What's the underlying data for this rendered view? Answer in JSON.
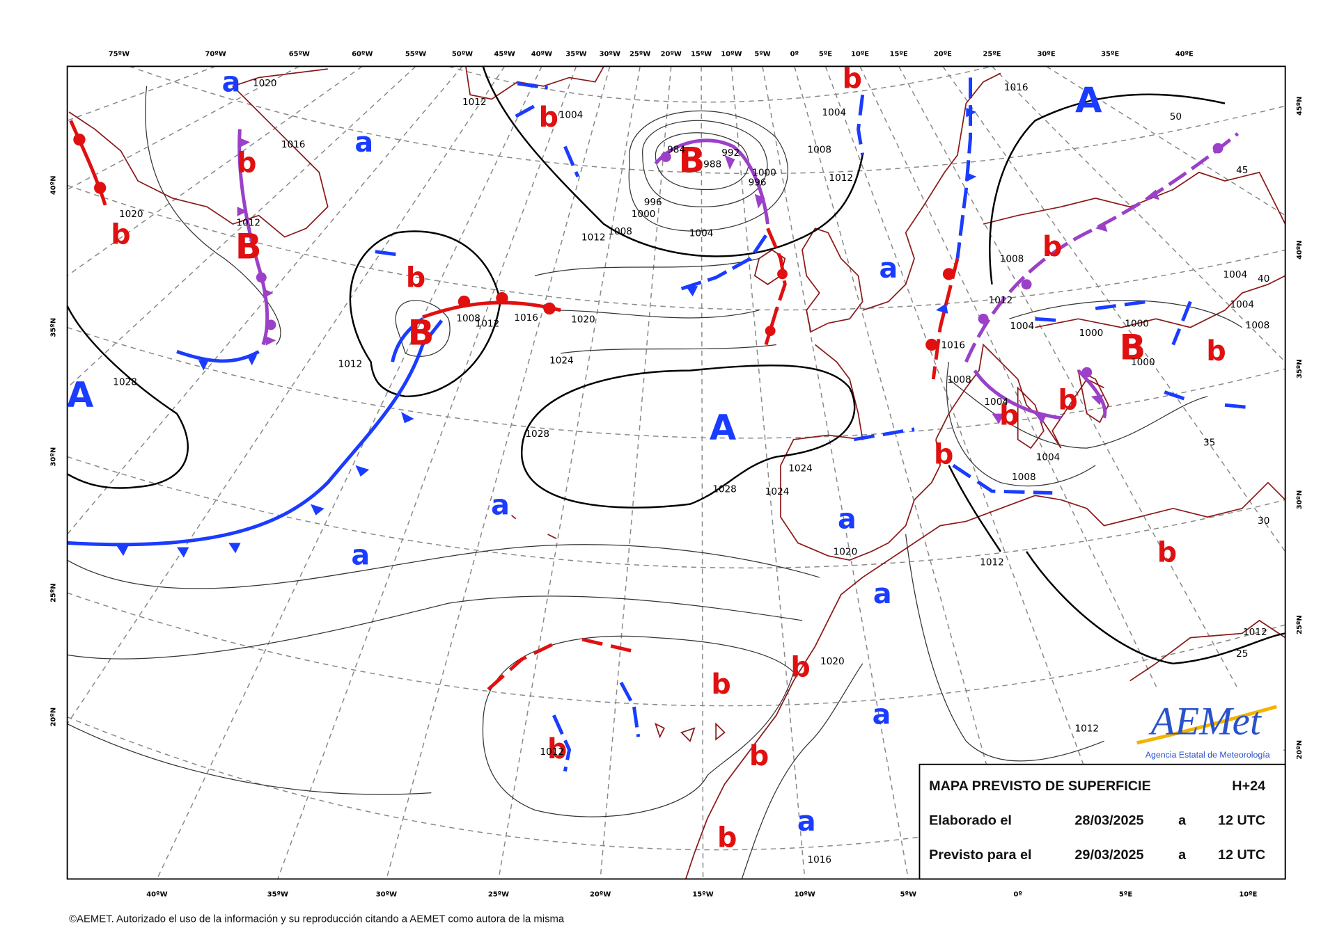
{
  "map": {
    "top_labels": [
      "75ºW",
      "70ºW",
      "65ºW",
      "60ºW",
      "55ºW",
      "50ºW",
      "45ºW",
      "40ºW",
      "35ºW",
      "30ºW",
      "25ºW",
      "20ºW",
      "15ºW",
      "10ºW",
      "5ºW",
      "0º",
      "5ºE",
      "10ºE",
      "15ºE",
      "20ºE",
      "25ºE",
      "30ºE",
      "35ºE",
      "40ºE"
    ],
    "bottom_labels": [
      "40ºW",
      "35ºW",
      "30ºW",
      "25ºW",
      "20ºW",
      "15ºW",
      "10ºW",
      "5ºW",
      "0º",
      "5ºE",
      "10ºE"
    ],
    "left_labels": [
      "40ºN",
      "35ºN",
      "30ºN",
      "25ºN",
      "20ºN"
    ],
    "right_labels": [
      "45ºN",
      "40ºN",
      "35ºN",
      "30ºN",
      "25ºN",
      "20ºN"
    ],
    "pressure_centers": [
      "A",
      "A",
      "A",
      "B",
      "B",
      "B",
      "B",
      "a",
      "a",
      "a",
      "a",
      "a",
      "a",
      "a",
      "a",
      "a",
      "b",
      "b",
      "b",
      "b",
      "b",
      "b",
      "b",
      "b",
      "b",
      "b",
      "b",
      "b",
      "b",
      "b",
      "b",
      "b"
    ],
    "isobar_labels": [
      "1020",
      "1012",
      "1004",
      "1016",
      "1012",
      "1020",
      "984",
      "992",
      "988",
      "1000",
      "996",
      "996",
      "1000",
      "1004",
      "1008",
      "1012",
      "1012",
      "1008",
      "1004",
      "1016",
      "1008",
      "1012",
      "1004",
      "1000",
      "1000",
      "1000",
      "1004",
      "1008",
      "1004",
      "1016",
      "1008",
      "1004",
      "1004",
      "1008",
      "1012",
      "1012",
      "1012",
      "1028",
      "1012",
      "1008",
      "1012",
      "1016",
      "1020",
      "1024",
      "1028",
      "1028",
      "1024",
      "1024",
      "1020",
      "1020",
      "1016",
      "1012",
      "50",
      "45",
      "40",
      "35",
      "30",
      "25"
    ]
  },
  "info_box": {
    "title": "MAPA PREVISTO DE SUPERFICIE",
    "horizon": "H+24",
    "rows": [
      [
        "Elaborado el",
        "28/03/2025",
        "a",
        "12 UTC"
      ],
      [
        "Previsto para el",
        "29/03/2025",
        "a",
        "12 UTC"
      ]
    ]
  },
  "logo": {
    "name": "AEMet",
    "subtitle": "Agencia Estatal de Meteorología"
  },
  "footer": "©AEMET. Autorizado el uso de la información y su reproducción citando a AEMET como autora de la misma"
}
